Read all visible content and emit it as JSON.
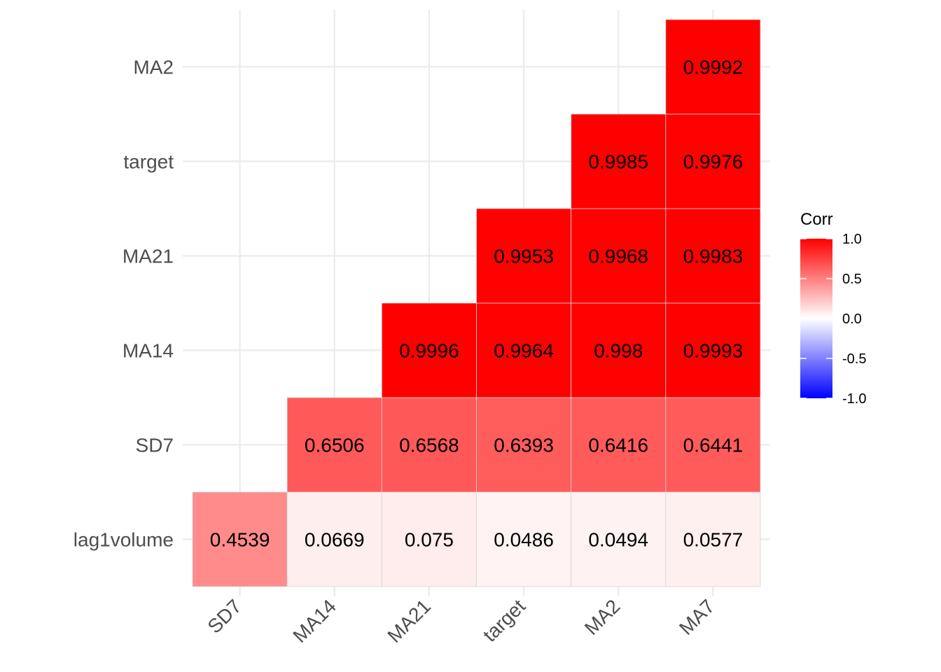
{
  "chart_data": {
    "type": "heatmap",
    "title": "",
    "xlabel": "",
    "ylabel": "",
    "x_categories": [
      "SD7",
      "MA14",
      "MA21",
      "target",
      "MA2",
      "MA7"
    ],
    "y_categories": [
      "lag1volume",
      "SD7",
      "MA14",
      "MA21",
      "target",
      "MA2"
    ],
    "cells": [
      {
        "x": "SD7",
        "y": "lag1volume",
        "value": 0.4539,
        "label": "0.4539"
      },
      {
        "x": "MA14",
        "y": "lag1volume",
        "value": 0.0669,
        "label": "0.0669"
      },
      {
        "x": "MA21",
        "y": "lag1volume",
        "value": 0.075,
        "label": "0.075"
      },
      {
        "x": "target",
        "y": "lag1volume",
        "value": 0.0486,
        "label": "0.0486"
      },
      {
        "x": "MA2",
        "y": "lag1volume",
        "value": 0.0494,
        "label": "0.0494"
      },
      {
        "x": "MA7",
        "y": "lag1volume",
        "value": 0.0577,
        "label": "0.0577"
      },
      {
        "x": "MA14",
        "y": "SD7",
        "value": 0.6506,
        "label": "0.6506"
      },
      {
        "x": "MA21",
        "y": "SD7",
        "value": 0.6568,
        "label": "0.6568"
      },
      {
        "x": "target",
        "y": "SD7",
        "value": 0.6393,
        "label": "0.6393"
      },
      {
        "x": "MA2",
        "y": "SD7",
        "value": 0.6416,
        "label": "0.6416"
      },
      {
        "x": "MA7",
        "y": "SD7",
        "value": 0.6441,
        "label": "0.6441"
      },
      {
        "x": "MA21",
        "y": "MA14",
        "value": 0.9996,
        "label": "0.9996"
      },
      {
        "x": "target",
        "y": "MA14",
        "value": 0.9964,
        "label": "0.9964"
      },
      {
        "x": "MA2",
        "y": "MA14",
        "value": 0.998,
        "label": "0.998"
      },
      {
        "x": "MA7",
        "y": "MA14",
        "value": 0.9993,
        "label": "0.9993"
      },
      {
        "x": "target",
        "y": "MA21",
        "value": 0.9953,
        "label": "0.9953"
      },
      {
        "x": "MA2",
        "y": "MA21",
        "value": 0.9968,
        "label": "0.9968"
      },
      {
        "x": "MA7",
        "y": "MA21",
        "value": 0.9983,
        "label": "0.9983"
      },
      {
        "x": "MA2",
        "y": "target",
        "value": 0.9985,
        "label": "0.9985"
      },
      {
        "x": "MA7",
        "y": "target",
        "value": 0.9976,
        "label": "0.9976"
      },
      {
        "x": "MA7",
        "y": "MA2",
        "value": 0.9992,
        "label": "0.9992"
      }
    ],
    "legend": {
      "title": "Corr",
      "position": "right",
      "range": [
        -1.0,
        1.0
      ],
      "ticks": [
        {
          "value": 1.0,
          "label": "1.0"
        },
        {
          "value": 0.5,
          "label": "0.5"
        },
        {
          "value": 0.0,
          "label": "0.0"
        },
        {
          "value": -0.5,
          "label": "-0.5"
        },
        {
          "value": -1.0,
          "label": "-1.0"
        }
      ]
    },
    "colors": {
      "high": "#ff0000",
      "mid": "#ffffff",
      "low": "#0000ff",
      "grid": "#ebebeb",
      "cell_border": "#d4d4d4"
    },
    "grid": true
  }
}
